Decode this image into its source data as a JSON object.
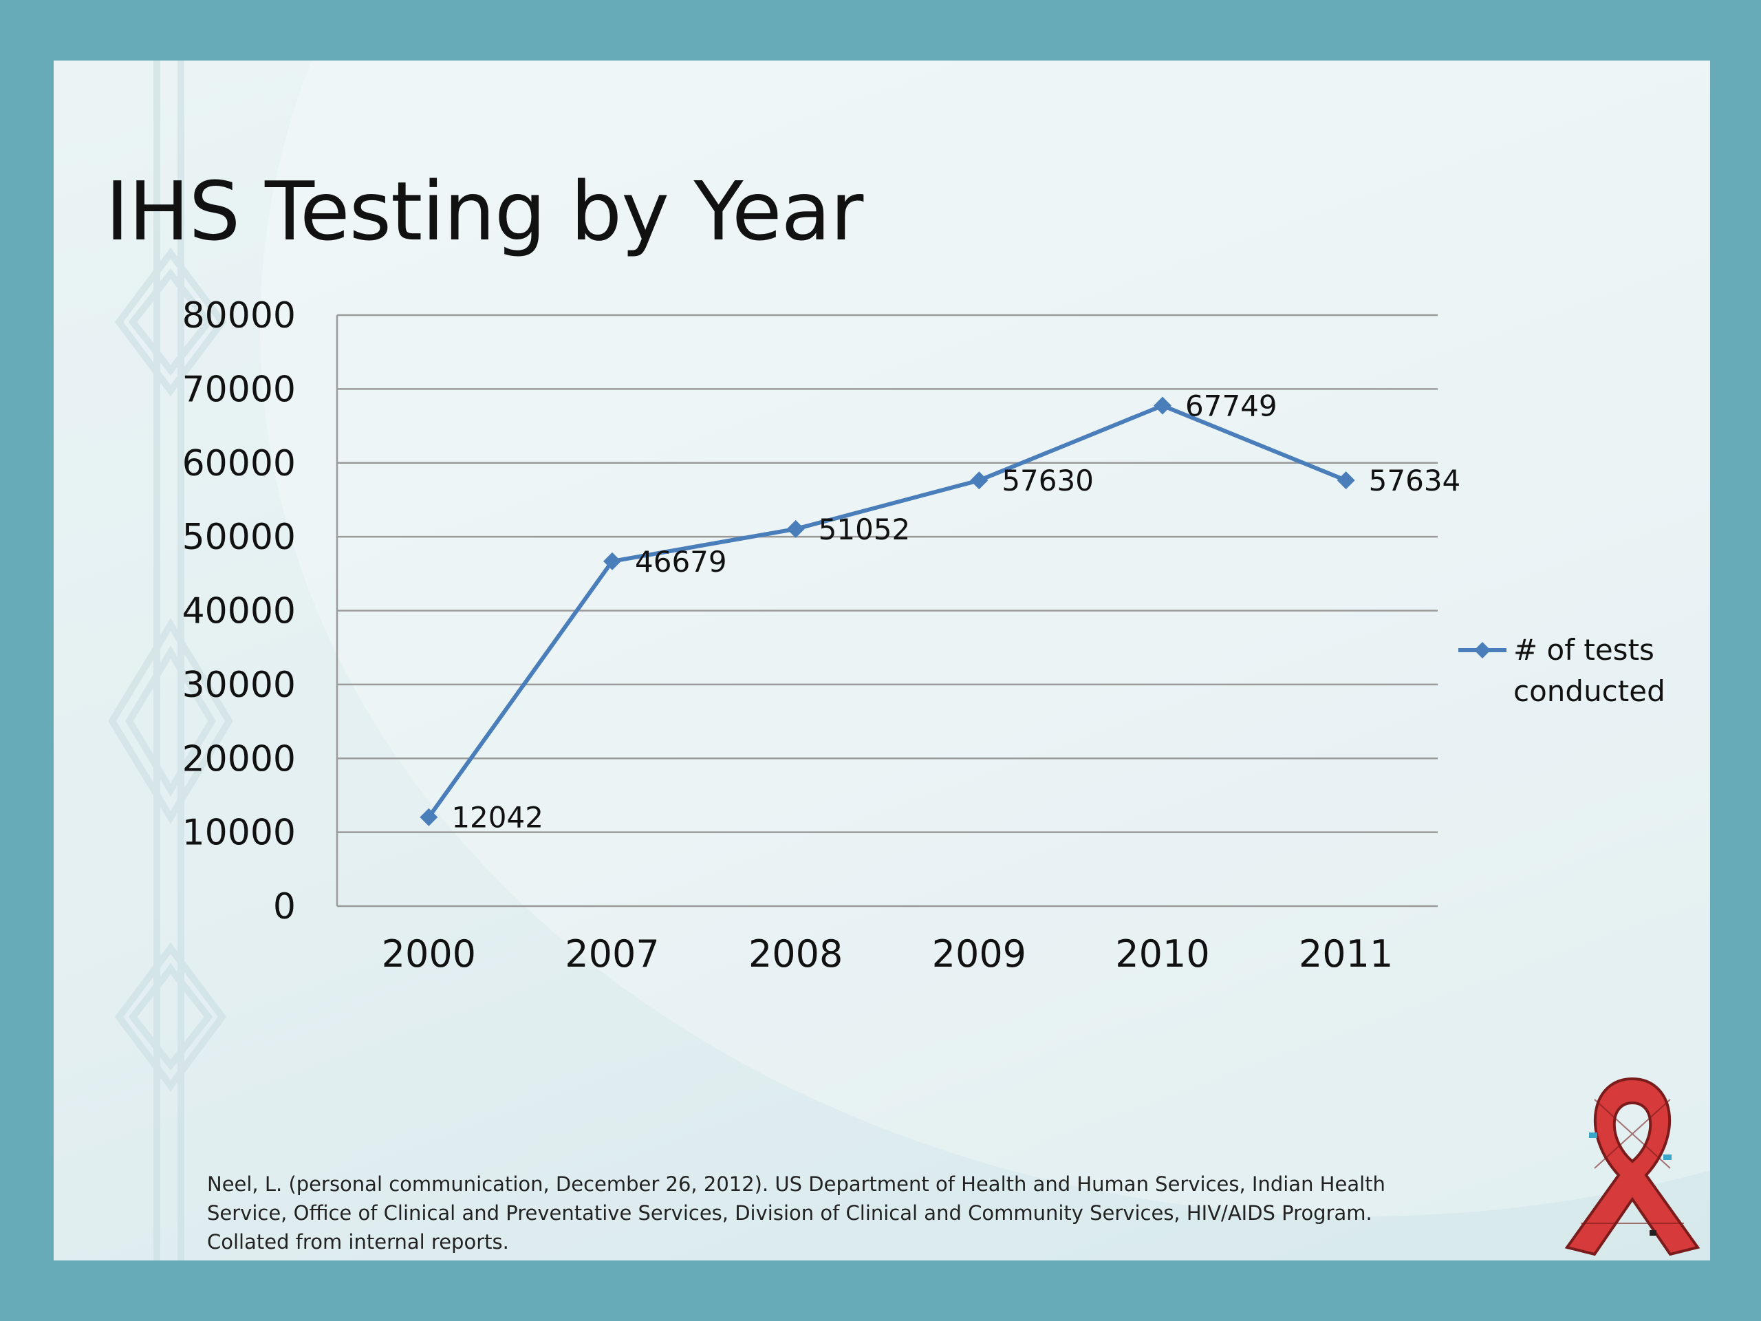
{
  "slide": {
    "title": "IHS Testing by Year",
    "footnote": "Neel, L. (personal communication, December 26, 2012). US Department of Health and Human Services, Indian Health Service, Office of Clinical and Preventative Services, Division of Clinical and Community Services, HIV/AIDS Program. Collated from internal reports."
  },
  "colors": {
    "background": "#67aab8",
    "series": "#4a7ebb",
    "gridline": "#9a9a9a",
    "ribbon": "#d63a3a"
  },
  "icons": [
    "awareness-ribbon-logo",
    "tribal-pattern-decoration"
  ],
  "chart_data": {
    "type": "line",
    "title": "",
    "xlabel": "",
    "ylabel": "",
    "categories": [
      "2000",
      "2007",
      "2008",
      "2009",
      "2010",
      "2011"
    ],
    "series": [
      {
        "name": "# of tests conducted",
        "values": [
          12042,
          46679,
          51052,
          57630,
          67749,
          57634
        ]
      }
    ],
    "data_labels": [
      "12042",
      "46679",
      "51052",
      "57630",
      "67749",
      "57634"
    ],
    "ylim": [
      0,
      80000
    ],
    "yticks": [
      0,
      10000,
      20000,
      30000,
      40000,
      50000,
      60000,
      70000,
      80000
    ],
    "ytick_labels": [
      "0",
      "10000",
      "20000",
      "30000",
      "40000",
      "50000",
      "60000",
      "70000",
      "80000"
    ],
    "grid": true,
    "marker": "diamond",
    "legend_position": "right"
  }
}
